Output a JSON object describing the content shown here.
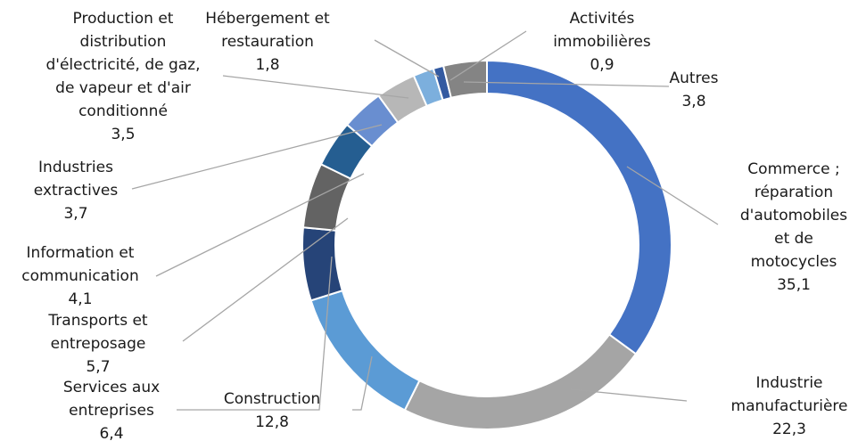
{
  "chart_data": {
    "type": "donut",
    "categories": [
      "Commerce ;\nréparation\nd'automobiles\net de\nmotocycles",
      "Industrie\nmanufacturière",
      "Construction",
      "Services aux\nentreprises",
      "Transports et\nentreposage",
      "Information et\ncommunication",
      "Industries\nextractives",
      "Production et\ndistribution\nd'électricité, de gaz,\nde vapeur et d'air\nconditionné",
      "Hébergement et\nrestauration",
      "Activités\nimmobilières",
      "Autres"
    ],
    "values": [
      35.1,
      22.3,
      12.8,
      6.4,
      5.7,
      4.1,
      3.7,
      3.5,
      1.8,
      0.9,
      3.8
    ],
    "value_labels": [
      "35,1",
      "22,3",
      "12,8",
      "6,4",
      "5,7",
      "4,1",
      "3,7",
      "3,5",
      "1,8",
      "0,9",
      "3,8"
    ],
    "colors": [
      "#4472c4",
      "#a5a5a5",
      "#5b9bd5",
      "#264478",
      "#636363",
      "#255e91",
      "#698ed0",
      "#b7b7b7",
      "#7cafdd",
      "#335aa1",
      "#848484"
    ]
  }
}
